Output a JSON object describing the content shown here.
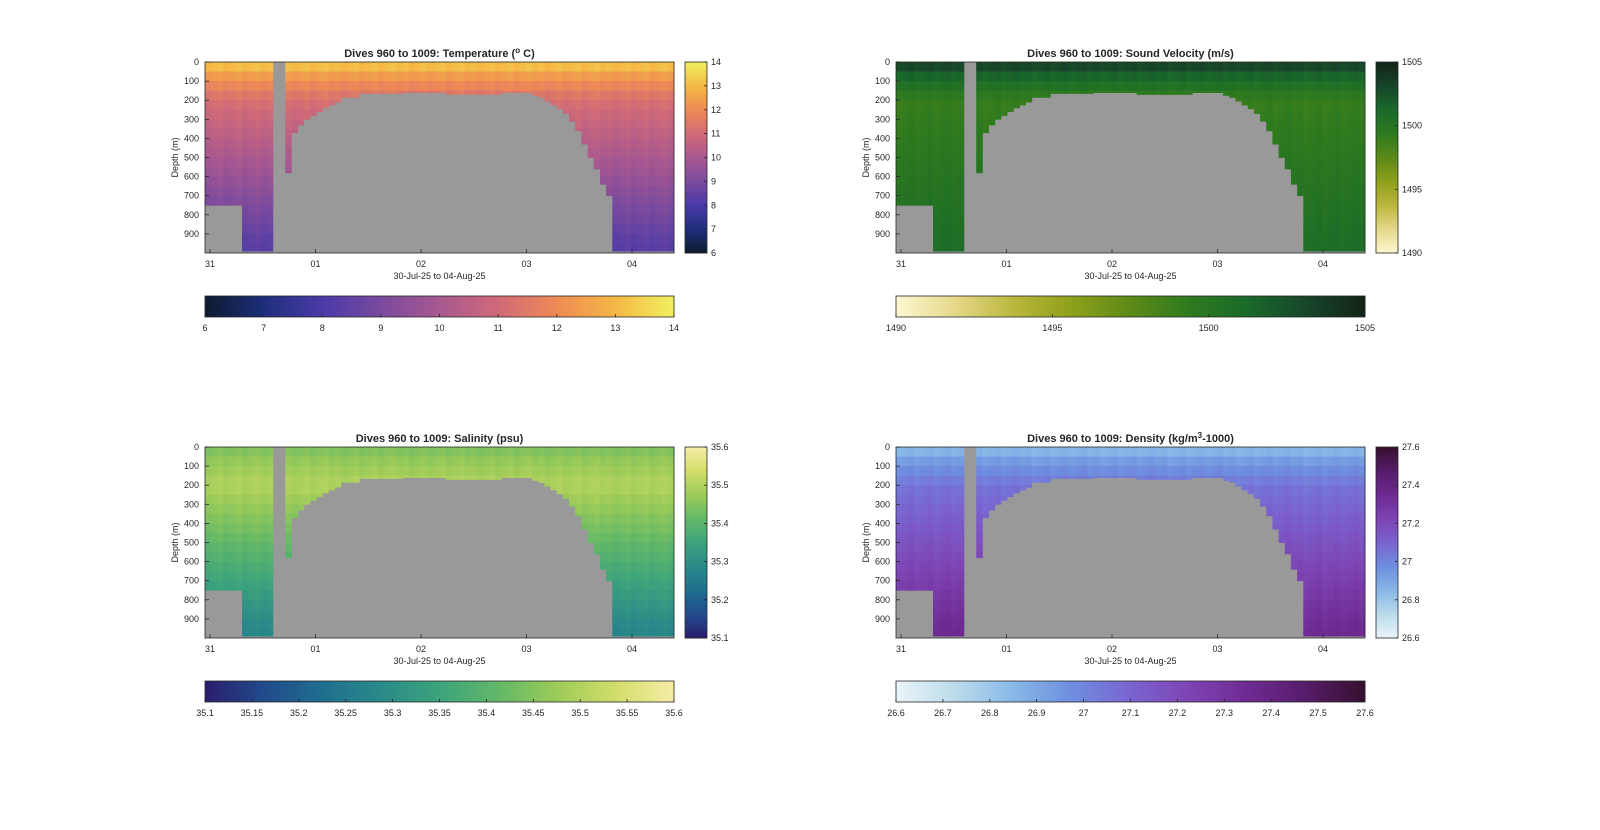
{
  "figure": {
    "background": "#ffffff",
    "land_color": "#999999"
  },
  "chart_data": [
    {
      "type": "heatmap",
      "title": "Dives 960 to 1009: Temperature (° C)",
      "title_parts": [
        "Dives 960 to 1009: Temperature (",
        "o",
        " C)"
      ],
      "ylabel": "Depth (m)",
      "xlabel": "30-Jul-25 to 04-Aug-25",
      "x_ticks": [
        "31",
        "01",
        "02",
        "03",
        "04"
      ],
      "y_ticks": [
        "0",
        "100",
        "200",
        "300",
        "400",
        "500",
        "600",
        "700",
        "800",
        "900"
      ],
      "ylim": [
        0,
        1000
      ],
      "colorbar_ticks": [
        "6",
        "7",
        "8",
        "9",
        "10",
        "11",
        "12",
        "13",
        "14"
      ],
      "colorbar_side_ticks": [
        "14",
        "13",
        "12",
        "11",
        "10",
        "9",
        "8",
        "7",
        "6"
      ],
      "clim": [
        6,
        14
      ],
      "colormap": [
        "#0d1a2e",
        "#1d2f7a",
        "#4a3aa8",
        "#7a4a9e",
        "#a85890",
        "#d06a78",
        "#ee8a55",
        "#f5b845",
        "#f0f060"
      ],
      "surface_value": 13.7,
      "mid_value": 11.2,
      "deep_value": 8.3
    },
    {
      "type": "heatmap",
      "title": "Dives 960 to 1009: Sound Velocity (m/s)",
      "ylabel": "Depth (m)",
      "xlabel": "30-Jul-25 to 04-Aug-25",
      "x_ticks": [
        "31",
        "01",
        "02",
        "03",
        "04"
      ],
      "y_ticks": [
        "0",
        "100",
        "200",
        "300",
        "400",
        "500",
        "600",
        "700",
        "800",
        "900"
      ],
      "ylim": [
        0,
        1000
      ],
      "colorbar_ticks": [
        "1490",
        "1495",
        "1500",
        "1505"
      ],
      "colorbar_side_ticks": [
        "1505",
        "1500",
        "1495",
        "1490"
      ],
      "clim": [
        1490,
        1505
      ],
      "colormap": [
        "#fcf7d2",
        "#e6d88a",
        "#bcb73e",
        "#8ea01a",
        "#5c8a18",
        "#2e7a1e",
        "#1a6a2a",
        "#17452a",
        "#122417"
      ],
      "surface_value": 1504.3,
      "mid_value": 1499.0,
      "deep_value": 1500.8
    },
    {
      "type": "heatmap",
      "title": "Dives 960 to 1009: Salinity (psu)",
      "ylabel": "Depth (m)",
      "xlabel": "30-Jul-25 to 04-Aug-25",
      "x_ticks": [
        "31",
        "01",
        "02",
        "03",
        "04"
      ],
      "y_ticks": [
        "0",
        "100",
        "200",
        "300",
        "400",
        "500",
        "600",
        "700",
        "800",
        "900"
      ],
      "ylim": [
        0,
        1000
      ],
      "colorbar_ticks": [
        "35.1",
        "35.15",
        "35.2",
        "35.25",
        "35.3",
        "35.35",
        "35.4",
        "35.45",
        "35.5",
        "35.55",
        "35.6"
      ],
      "colorbar_side_ticks": [
        "35.6",
        "35.5",
        "35.4",
        "35.3",
        "35.2",
        "35.1"
      ],
      "clim": [
        35.1,
        35.6
      ],
      "colormap": [
        "#2a1d6e",
        "#224a8c",
        "#1f6e8e",
        "#2a8a8a",
        "#3ca37c",
        "#62b868",
        "#9ccb58",
        "#d2dd6a",
        "#f6eca6"
      ],
      "surface_value": 35.43,
      "mid_value": 35.5,
      "deep_value": 35.28
    },
    {
      "type": "heatmap",
      "title": "Dives 960 to 1009: Density (kg/m³-1000)",
      "title_parts": [
        "Dives 960 to 1009: Density (kg/m",
        "3",
        "-1000)"
      ],
      "ylabel": "Depth (m)",
      "xlabel": "30-Jul-25 to 04-Aug-25",
      "x_ticks": [
        "31",
        "01",
        "02",
        "03",
        "04"
      ],
      "y_ticks": [
        "0",
        "100",
        "200",
        "300",
        "400",
        "500",
        "600",
        "700",
        "800",
        "900"
      ],
      "ylim": [
        0,
        1000
      ],
      "colorbar_ticks": [
        "26.6",
        "26.7",
        "26.8",
        "26.9",
        "27",
        "27.1",
        "27.2",
        "27.3",
        "27.4",
        "27.5",
        "27.6"
      ],
      "colorbar_side_ticks": [
        "27.6",
        "27.4",
        "27.2",
        "27",
        "26.8",
        "26.6"
      ],
      "clim": [
        26.6,
        27.6
      ],
      "colormap": [
        "#eaf4f8",
        "#bcdcec",
        "#88b8e6",
        "#6e8ee0",
        "#7a64d0",
        "#7e44b4",
        "#6e2a92",
        "#561c6a",
        "#36102e"
      ],
      "surface_value": 26.8,
      "mid_value": 27.05,
      "deep_value": 27.35
    }
  ]
}
